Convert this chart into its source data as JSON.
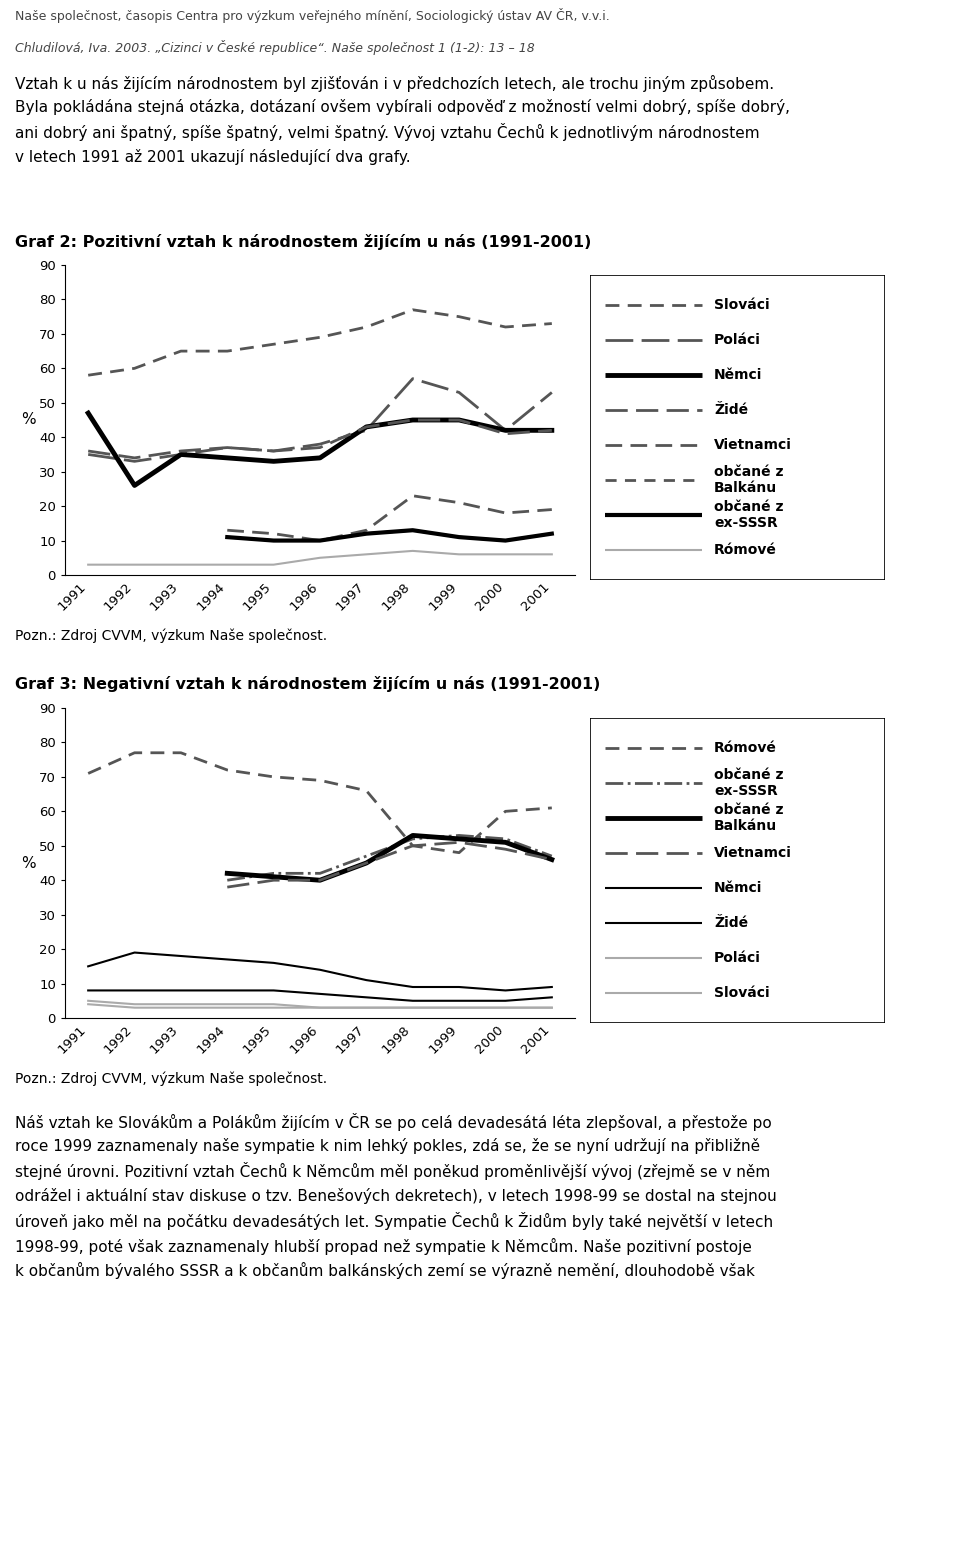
{
  "header_line1": "Naše společnost, časopis Centra pro výzkum veřejného mínění, Sociologický ústav AV ČR, v.v.i.",
  "header_line2": "Chludilová, Iva. 2003. „Cizinci v České republice“. Naše společnost 1 (1-2): 13 – 18",
  "graf2_title": "Graf 2: Pozitivní vztah k národnostem žijícím u nás (1991-2001)",
  "graf3_title": "Graf 3: Negativní vztah k národnostem žijícím u nás (1991-2001)",
  "note_text": "Pozn.: Zdroj CVVM, výzkum Naše společnost.",
  "years": [
    1991,
    1992,
    1993,
    1994,
    1995,
    1996,
    1997,
    1998,
    1999,
    2000,
    2001
  ],
  "graf2": {
    "Slováci": [
      58,
      60,
      65,
      65,
      67,
      69,
      72,
      77,
      75,
      72,
      73
    ],
    "Poláci": [
      35,
      33,
      35,
      37,
      36,
      38,
      42,
      57,
      53,
      42,
      53
    ],
    "Němci": [
      47,
      26,
      35,
      34,
      33,
      34,
      43,
      45,
      45,
      42,
      42
    ],
    "Židé": [
      36,
      34,
      36,
      37,
      36,
      37,
      43,
      45,
      45,
      41,
      42
    ],
    "Vietnamci": [
      null,
      null,
      null,
      13,
      12,
      10,
      13,
      23,
      21,
      18,
      19
    ],
    "občané z Balkánu": [
      null,
      null,
      null,
      11,
      10,
      10,
      12,
      13,
      11,
      10,
      12
    ],
    "občané z ex-SSSR": [
      null,
      null,
      null,
      11,
      10,
      10,
      12,
      13,
      11,
      10,
      12
    ],
    "Rómové": [
      3,
      3,
      3,
      3,
      3,
      5,
      6,
      7,
      6,
      6,
      6
    ]
  },
  "graf3": {
    "Rómové": [
      71,
      77,
      77,
      72,
      70,
      69,
      66,
      50,
      48,
      60,
      61
    ],
    "občané z ex-SSSR": [
      null,
      null,
      null,
      40,
      42,
      42,
      47,
      52,
      53,
      52,
      47
    ],
    "občané z Balkánu": [
      null,
      null,
      null,
      42,
      41,
      40,
      45,
      53,
      52,
      51,
      46
    ],
    "Vietnamci": [
      null,
      null,
      null,
      38,
      40,
      40,
      45,
      50,
      51,
      49,
      46
    ],
    "Němci": [
      15,
      19,
      18,
      17,
      16,
      14,
      11,
      9,
      9,
      8,
      9
    ],
    "Židé": [
      8,
      8,
      8,
      8,
      8,
      7,
      6,
      5,
      5,
      5,
      6
    ],
    "Poláci": [
      5,
      4,
      4,
      4,
      4,
      3,
      3,
      3,
      3,
      3,
      3
    ],
    "Slováci": [
      4,
      3,
      3,
      3,
      3,
      3,
      3,
      3,
      3,
      3,
      3
    ]
  },
  "graf2_styles": {
    "Slováci": {
      "color": "#555555",
      "lw": 2.0,
      "ls": "dashed",
      "dashes": [
        5,
        3
      ],
      "marker": null,
      "ms": 0
    },
    "Poláci": {
      "color": "#555555",
      "lw": 2.0,
      "ls": "dashed",
      "dashes": [
        10,
        3
      ],
      "marker": null,
      "ms": 0
    },
    "Němci": {
      "color": "#000000",
      "lw": 3.5,
      "ls": "solid",
      "dashes": null,
      "marker": null,
      "ms": 0
    },
    "Židé": {
      "color": "#555555",
      "lw": 2.0,
      "ls": "dashed",
      "dashes": [
        8,
        3
      ],
      "marker": null,
      "ms": 0
    },
    "Vietnamci": {
      "color": "#555555",
      "lw": 2.0,
      "ls": "dashed",
      "dashes": [
        6,
        3
      ],
      "marker": null,
      "ms": 0
    },
    "občané z Balkánu": {
      "color": "#555555",
      "lw": 2.0,
      "ls": "dashed",
      "dashes": [
        4,
        3
      ],
      "marker": null,
      "ms": 0
    },
    "občané z ex-SSSR": {
      "color": "#000000",
      "lw": 3.0,
      "ls": "solid",
      "dashes": null,
      "marker": null,
      "ms": 0
    },
    "Rómové": {
      "color": "#aaaaaa",
      "lw": 1.5,
      "ls": "solid",
      "dashes": null,
      "marker": null,
      "ms": 0
    }
  },
  "graf3_styles": {
    "Rómové": {
      "color": "#555555",
      "lw": 2.0,
      "ls": "dashed",
      "dashes": [
        5,
        3
      ],
      "marker": null,
      "ms": 0
    },
    "občané z ex-SSSR": {
      "color": "#555555",
      "lw": 2.0,
      "ls": "dashdot",
      "dashes": null,
      "marker": null,
      "ms": 0
    },
    "občané z Balkánu": {
      "color": "#000000",
      "lw": 3.5,
      "ls": "solid",
      "dashes": null,
      "marker": null,
      "ms": 0
    },
    "Vietnamci": {
      "color": "#555555",
      "lw": 2.0,
      "ls": "dashed",
      "dashes": [
        8,
        3
      ],
      "marker": null,
      "ms": 0
    },
    "Němci": {
      "color": "#000000",
      "lw": 1.5,
      "ls": "solid",
      "dashes": null,
      "marker": null,
      "ms": 0
    },
    "Židé": {
      "color": "#000000",
      "lw": 1.5,
      "ls": "solid",
      "dashes": null,
      "marker": null,
      "ms": 0
    },
    "Poláci": {
      "color": "#aaaaaa",
      "lw": 1.5,
      "ls": "solid",
      "dashes": null,
      "marker": null,
      "ms": 0
    },
    "Slováci": {
      "color": "#aaaaaa",
      "lw": 1.5,
      "ls": "solid",
      "dashes": null,
      "marker": null,
      "ms": 0
    }
  },
  "graf2_legend": [
    {
      "label": "Slováci",
      "lw": 2.0,
      "color": "#555555",
      "ls": "dashed",
      "dashes": [
        5,
        3
      ]
    },
    {
      "label": "Poláci",
      "lw": 2.0,
      "color": "#555555",
      "ls": "dashed",
      "dashes": [
        10,
        3
      ]
    },
    {
      "label": "Němci",
      "lw": 3.5,
      "color": "#000000",
      "ls": "solid",
      "dashes": null
    },
    {
      "label": "Židé",
      "lw": 2.0,
      "color": "#555555",
      "ls": "dashed",
      "dashes": [
        8,
        3
      ]
    },
    {
      "label": "Vietnamci",
      "lw": 2.0,
      "color": "#555555",
      "ls": "dashed",
      "dashes": [
        6,
        3
      ]
    },
    {
      "label": "občané z\nBalkánu",
      "lw": 2.0,
      "color": "#555555",
      "ls": "dashed",
      "dashes": [
        4,
        3
      ]
    },
    {
      "label": "občané z\nex-SSSR",
      "lw": 3.0,
      "color": "#000000",
      "ls": "solid",
      "dashes": null
    },
    {
      "label": "Rómové",
      "lw": 1.5,
      "color": "#aaaaaa",
      "ls": "solid",
      "dashes": null
    }
  ],
  "graf3_legend": [
    {
      "label": "Rómové",
      "lw": 2.0,
      "color": "#555555",
      "ls": "dashed",
      "dashes": [
        5,
        3
      ]
    },
    {
      "label": "občané z\nex-SSSR",
      "lw": 2.0,
      "color": "#555555",
      "ls": "dashdot",
      "dashes": null
    },
    {
      "label": "občané z\nBalkánu",
      "lw": 3.5,
      "color": "#000000",
      "ls": "solid",
      "dashes": null
    },
    {
      "label": "Vietnamci",
      "lw": 2.0,
      "color": "#555555",
      "ls": "dashed",
      "dashes": [
        8,
        3
      ]
    },
    {
      "label": "Němci",
      "lw": 1.5,
      "color": "#000000",
      "ls": "solid",
      "dashes": null
    },
    {
      "label": "Židé",
      "lw": 1.5,
      "color": "#000000",
      "ls": "solid",
      "dashes": null
    },
    {
      "label": "Poláci",
      "lw": 1.5,
      "color": "#aaaaaa",
      "ls": "solid",
      "dashes": null
    },
    {
      "label": "Slováci",
      "lw": 1.5,
      "color": "#aaaaaa",
      "ls": "solid",
      "dashes": null
    }
  ],
  "intro_lines": [
    "Vztah k u nás žijícím národnostem byl zjišťován i v předchozích letech, ale trochu jiným způsobem.",
    "Byla pokládána stejná otázka, dotázaní ovšem vybírali odpověď z možností velmi dobrý, spíše dobrý,",
    "ani dobrý ani špatný, spíše špatný, velmi špatný. Vývoj vztahu Čechů k jednotlivým národnostem",
    "v letech 1991 až 2001 ukazují následující dva grafy."
  ],
  "bottom_lines": [
    "Náš vztah ke Slovákům a Polákům žijícím v ČR se po celá devadesátá léta zlepšoval, a přestože po",
    "roce 1999 zaznamenaly naše sympatie k nim lehký pokles, zdá se, že se nyní udržují na přibližně",
    "stejné úrovni. Pozitivní vztah Čechů k Němcům měl poněkud proměnlivější vývoj (zřejmě se v něm",
    "odrážel i aktuální stav diskuse o tzv. Benešových dekretech), v letech 1998-99 se dostal na stejnou",
    "úroveň jako měl na počátku devadesátých let. Sympatie Čechů k Židům byly také největší v letech",
    "1998-99, poté však zaznamenaly hlubší propad než sympatie k Němcům. Naše pozitivní postoje",
    "k občanům bývalého SSSR a k občanům balkánských zemí se výrazně nemění, dlouhodobě však"
  ]
}
